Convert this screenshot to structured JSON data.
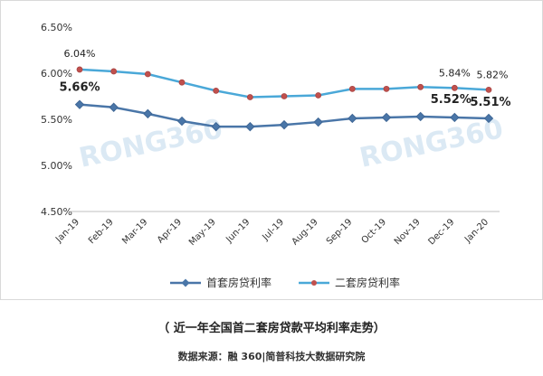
{
  "chart_data": {
    "type": "line",
    "categories": [
      "Jan-19",
      "Feb-19",
      "Mar-19",
      "Apr-19",
      "May-19",
      "Jun-19",
      "Jul-19",
      "Aug-19",
      "Sep-19",
      "Oct-19",
      "Nov-19",
      "Dec-19",
      "Jan-20"
    ],
    "series": [
      {
        "name": "首套房贷利率",
        "color": "#4a76a8",
        "marker": "diamond",
        "values": [
          5.66,
          5.63,
          5.56,
          5.48,
          5.42,
          5.42,
          5.44,
          5.47,
          5.51,
          5.52,
          5.53,
          5.52,
          5.51
        ]
      },
      {
        "name": "二套房贷利率",
        "color": "#4aa8d8",
        "marker": "circle",
        "values": [
          6.04,
          6.02,
          5.99,
          5.9,
          5.81,
          5.74,
          5.75,
          5.76,
          5.83,
          5.83,
          5.85,
          5.84,
          5.82
        ]
      }
    ],
    "data_labels": [
      {
        "series": 1,
        "index": 0,
        "text": "6.04%"
      },
      {
        "series": 0,
        "index": 0,
        "text": "5.66%"
      },
      {
        "series": 1,
        "index": 11,
        "text": "5.84%"
      },
      {
        "series": 1,
        "index": 12,
        "text": "5.82%"
      },
      {
        "series": 0,
        "index": 11,
        "text": "5.52%"
      },
      {
        "series": 0,
        "index": 12,
        "text": "5.51%"
      }
    ],
    "yticks": [
      "4.50%",
      "5.00%",
      "5.50%",
      "6.00%",
      "6.50%"
    ],
    "ylim": [
      4.5,
      6.5
    ],
    "grid": false,
    "legend": "bottom",
    "watermark": "RONG360"
  },
  "caption": "（ 近一年全国首二套房贷款平均利率走势）",
  "source": "数据来源：融 360|简普科技大数据研究院"
}
